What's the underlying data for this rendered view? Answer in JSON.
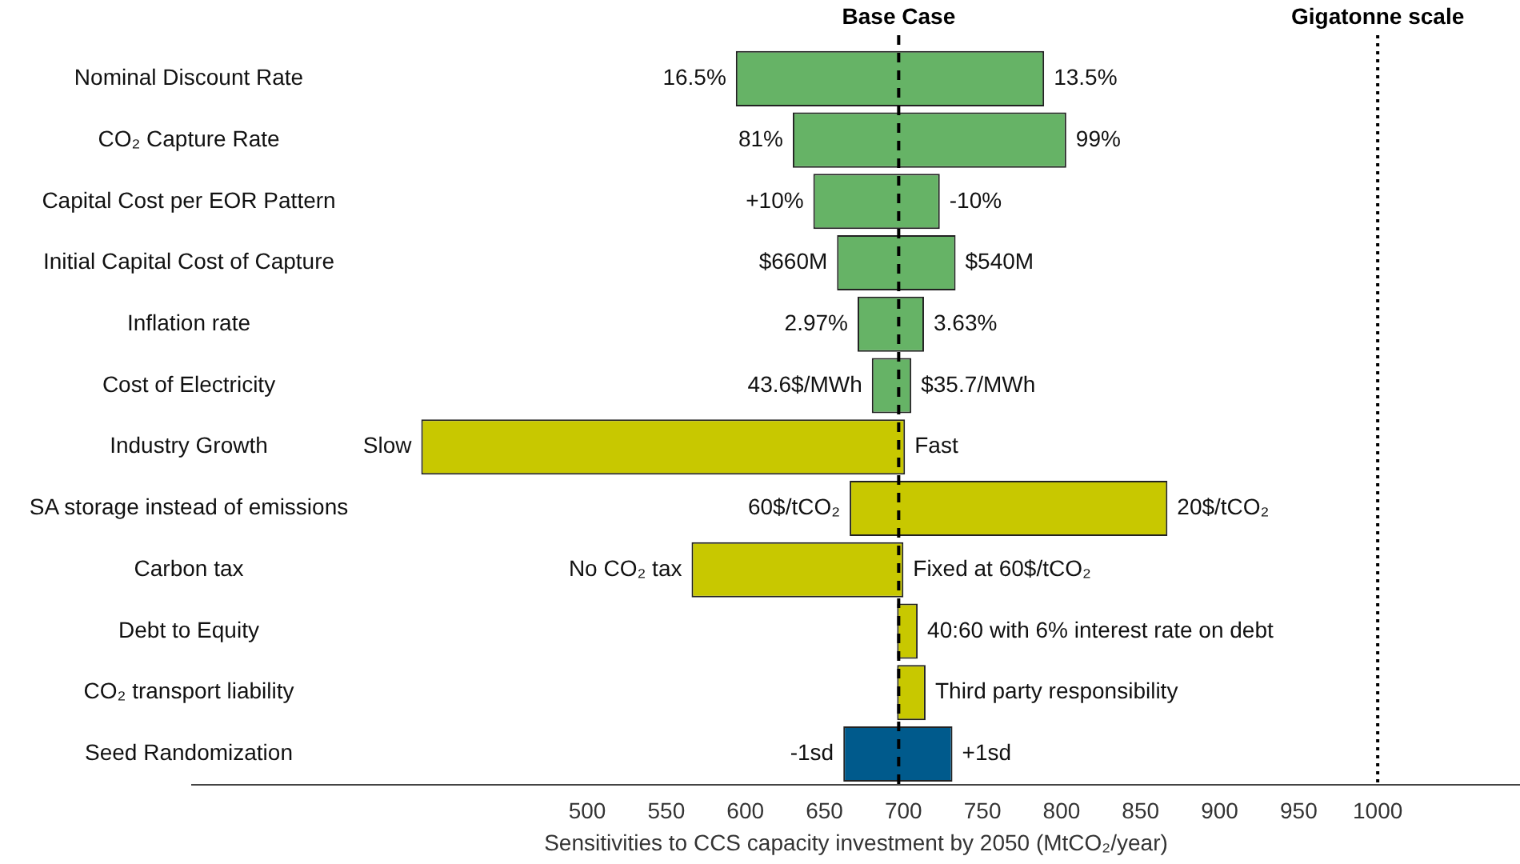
{
  "chart_data": {
    "type": "bar",
    "orientation": "horizontal",
    "categories": [
      "Nominal Discount Rate",
      "CO₂ Capture Rate",
      "Capital Cost per EOR Pattern",
      "Initial Capital Cost of Capture",
      "Inflation rate",
      "Cost of Electricity",
      "Industry Growth",
      "SA storage instead of emissions",
      "Carbon tax",
      "Debt to Equity",
      "CO₂ transport liability",
      "Seed Randomization"
    ],
    "base": [
      594,
      630,
      643,
      658,
      671,
      680,
      395,
      666,
      566,
      696,
      696,
      662
    ],
    "values": [
      195,
      173,
      80,
      75,
      42,
      25,
      306,
      201,
      134,
      13,
      18,
      69
    ],
    "colors": [
      "#66b366",
      "#66b366",
      "#66b366",
      "#66b366",
      "#66b366",
      "#66b366",
      "#c8c800",
      "#c8c800",
      "#c8c800",
      "#c8c800",
      "#c8c800",
      "#005a8c"
    ],
    "xlim": [
      250,
      1090
    ],
    "xticks": [
      500,
      550,
      600,
      650,
      700,
      750,
      800,
      850,
      900,
      950,
      {
        "value": 1000,
        "label": "1000"
      }
    ],
    "xlabel": "Sensitivities to CCS capacity investment by 2050 (MtCO₂/year)",
    "ref_lines": [
      {
        "axis": "x",
        "value": 697,
        "label": "Base Case",
        "line_style": "dashed",
        "color": "#000000"
      },
      {
        "axis": "x",
        "value": 1000,
        "label": "Gigatonne scale",
        "line_style": "dotted",
        "color": "#000000"
      }
    ],
    "annotations": [
      {
        "text": "16.5%",
        "x": 594,
        "y": "Nominal Discount Rate"
      },
      {
        "text": "13.5%",
        "x": 789,
        "y": "Nominal Discount Rate"
      },
      {
        "text": "81%",
        "x": 630,
        "y": "CO₂ Capture Rate"
      },
      {
        "text": "99%",
        "x": 803,
        "y": "CO₂ Capture Rate"
      },
      {
        "text": "+10%",
        "x": 643,
        "y": "Capital Cost per EOR Pattern"
      },
      {
        "text": "-10%",
        "x": 723,
        "y": "Capital Cost per EOR Pattern"
      },
      {
        "text": "$660M",
        "x": 658,
        "y": "Initial Capital Cost of Capture"
      },
      {
        "text": "$540M",
        "x": 733,
        "y": "Initial Capital Cost of Capture"
      },
      {
        "text": "2.97%",
        "x": 671,
        "y": "Inflation rate"
      },
      {
        "text": "3.63%",
        "x": 713,
        "y": "Inflation rate"
      },
      {
        "text": "43.6$/MWh",
        "x": 680,
        "y": "Cost of Electricity"
      },
      {
        "text": "$35.7/MWh",
        "x": 705,
        "y": "Cost of Electricity"
      },
      {
        "text": "Slow",
        "x": 395,
        "y": "Industry Growth"
      },
      {
        "text": "Fast",
        "x": 701,
        "y": "Industry Growth"
      },
      {
        "text": "60$/tCO₂",
        "x": 666,
        "y": "SA storage instead of emissions"
      },
      {
        "text": "20$/tCO₂",
        "x": 867,
        "y": "SA storage instead of emissions"
      },
      {
        "text": "No CO₂ tax",
        "x": 566,
        "y": "Carbon tax"
      },
      {
        "text": "Fixed at 60$/tCO₂",
        "x": 700,
        "y": "Carbon tax"
      },
      {
        "text": "40:60 with 6% interest rate on debt",
        "x": 709,
        "y": "Debt to Equity"
      },
      {
        "text": "Third party responsibility",
        "x": 714,
        "y": "CO₂ transport liability"
      },
      {
        "text": "-1sd",
        "x": 662,
        "y": "Seed Randomization"
      },
      {
        "text": "+1sd",
        "x": 731,
        "y": "Seed Randomization"
      }
    ],
    "grid": false,
    "legend": false
  }
}
